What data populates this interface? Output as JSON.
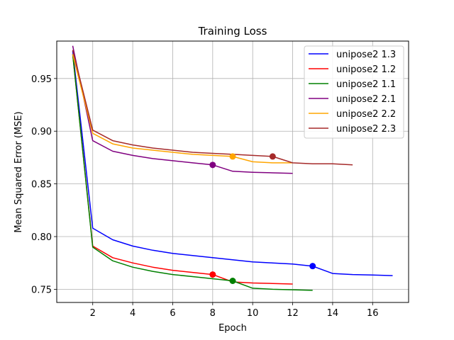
{
  "chart_data": {
    "type": "line",
    "title": "Training Loss",
    "xlabel": "Epoch",
    "ylabel": "Mean Squared Error (MSE)",
    "xlim": [
      0.2,
      17.8
    ],
    "ylim": [
      0.7375,
      0.9855
    ],
    "xticks": [
      2,
      4,
      6,
      8,
      10,
      12,
      14,
      16
    ],
    "yticks": [
      0.75,
      0.8,
      0.85,
      0.9,
      0.95
    ],
    "grid": true,
    "legend_position": "top-right",
    "series": [
      {
        "name": "unipose2 1.3",
        "color": "#0000ff",
        "x": [
          1,
          2,
          3,
          4,
          5,
          6,
          7,
          8,
          9,
          10,
          11,
          12,
          13,
          14,
          15,
          16,
          17
        ],
        "y": [
          0.976,
          0.808,
          0.797,
          0.791,
          0.787,
          0.784,
          0.782,
          0.78,
          0.778,
          0.776,
          0.775,
          0.774,
          0.772,
          0.765,
          0.764,
          0.7635,
          0.763
        ],
        "best": [
          13,
          0.772
        ]
      },
      {
        "name": "unipose2 1.2",
        "color": "#ff0000",
        "x": [
          1,
          2,
          3,
          4,
          5,
          6,
          7,
          8,
          9,
          10,
          11,
          12
        ],
        "y": [
          0.973,
          0.791,
          0.78,
          0.775,
          0.771,
          0.768,
          0.766,
          0.764,
          0.757,
          0.756,
          0.7555,
          0.755
        ],
        "best": [
          8,
          0.764
        ]
      },
      {
        "name": "unipose2 1.1",
        "color": "#008000",
        "x": [
          1,
          2,
          3,
          4,
          5,
          6,
          7,
          8,
          9,
          10,
          11,
          12,
          13
        ],
        "y": [
          0.973,
          0.79,
          0.777,
          0.771,
          0.767,
          0.764,
          0.762,
          0.76,
          0.758,
          0.751,
          0.75,
          0.7495,
          0.749
        ],
        "best": [
          9,
          0.758
        ]
      },
      {
        "name": "unipose2 2.1",
        "color": "#800080",
        "x": [
          1,
          2,
          3,
          4,
          5,
          6,
          7,
          8,
          9,
          10,
          11,
          12
        ],
        "y": [
          0.981,
          0.891,
          0.881,
          0.877,
          0.874,
          0.872,
          0.87,
          0.868,
          0.862,
          0.861,
          0.8605,
          0.86
        ],
        "best": [
          8,
          0.868
        ]
      },
      {
        "name": "unipose2 2.2",
        "color": "#ffa500",
        "x": [
          1,
          2,
          3,
          4,
          5,
          6,
          7,
          8,
          9,
          10,
          11,
          12
        ],
        "y": [
          0.973,
          0.898,
          0.888,
          0.884,
          0.882,
          0.88,
          0.878,
          0.877,
          0.876,
          0.871,
          0.87,
          0.87
        ],
        "best": [
          9,
          0.876
        ]
      },
      {
        "name": "unipose2 2.3",
        "color": "#a52a2a",
        "x": [
          1,
          2,
          3,
          4,
          5,
          6,
          7,
          8,
          9,
          10,
          11,
          12,
          13,
          14,
          15
        ],
        "y": [
          0.977,
          0.901,
          0.891,
          0.887,
          0.884,
          0.882,
          0.88,
          0.879,
          0.878,
          0.877,
          0.876,
          0.87,
          0.869,
          0.869,
          0.868
        ],
        "best": [
          11,
          0.876
        ]
      }
    ]
  }
}
